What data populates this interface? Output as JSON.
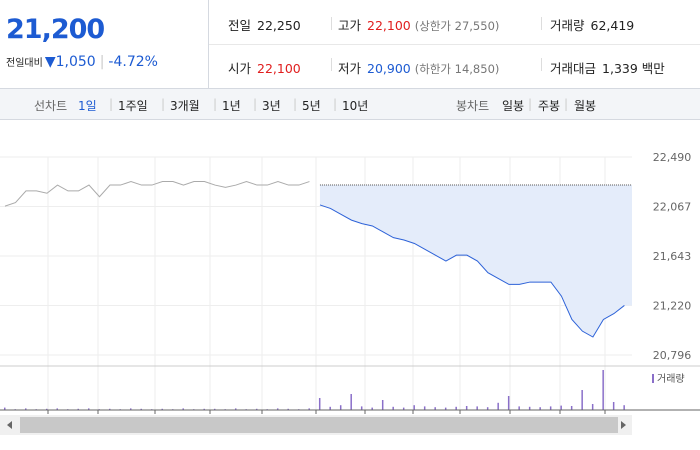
{
  "header": {
    "price": "21,200",
    "change_label": "전일대비",
    "change": "1,050",
    "change_pct": "-4.72%",
    "stats": [
      [
        {
          "label": "전일",
          "value": "22,250"
        },
        {
          "label": "고가",
          "value": "22,100",
          "note": "(상한가 27,550)"
        },
        {
          "label": "거래량",
          "value": "62,419"
        }
      ],
      [
        {
          "label": "시가",
          "value": "22,100"
        },
        {
          "label": "저가",
          "value": "20,900",
          "note": "(하한가 14,850)"
        },
        {
          "label": "거래대금",
          "value": "1,339 백만"
        }
      ]
    ]
  },
  "tabs": {
    "line_label": "선차트",
    "line_items": [
      "1일",
      "1주일",
      "3개월",
      "1년",
      "3년",
      "5년",
      "10년"
    ],
    "active": "1일",
    "candle_label": "봉차트",
    "candle_items": [
      "일봉",
      "주봉",
      "월봉"
    ]
  },
  "chart_data": {
    "type": "line",
    "categories": [
      null,
      null,
      null,
      null,
      null,
      null,
      null,
      null,
      null,
      null,
      null,
      null,
      null,
      null,
      null,
      null,
      null,
      null,
      null,
      null,
      null,
      null,
      null,
      null,
      null,
      null,
      null,
      null,
      null,
      null,
      null,
      null,
      null,
      null,
      null,
      null,
      null,
      null,
      null,
      null,
      null,
      null,
      null,
      null,
      null,
      null,
      null,
      null,
      null,
      null,
      null,
      null,
      null,
      null,
      null,
      null,
      null,
      null,
      null,
      null
    ],
    "ylim": [
      20796,
      22490
    ],
    "yticks": [
      {
        "value": 22490,
        "label": "22,490"
      },
      {
        "value": 22067,
        "label": "22,067"
      },
      {
        "value": 21643,
        "label": "21,643"
      },
      {
        "value": 21220,
        "label": "21,220"
      },
      {
        "value": 20796,
        "label": "20,796"
      }
    ],
    "reference": 22250,
    "series": [
      {
        "color": "#aaaaaa",
        "values": [
          22070,
          22100,
          22200,
          22200,
          22180,
          22250,
          22200,
          22200,
          22250,
          22150,
          22250,
          22250,
          22280,
          22250,
          22250,
          22280,
          22280,
          22250,
          22280,
          22280,
          22250,
          22230,
          22250,
          22280,
          22250,
          22250,
          22280,
          22250,
          22250,
          22280,
          null,
          null,
          null,
          null,
          null,
          null,
          null,
          null,
          null,
          null,
          null,
          null,
          null,
          null,
          null,
          null,
          null,
          null,
          null,
          null,
          null,
          null,
          null,
          null,
          null,
          null,
          null,
          null,
          null,
          null
        ]
      },
      {
        "color": "#2d62d8",
        "area_color": "#e4ecfa",
        "values": [
          null,
          null,
          null,
          null,
          null,
          null,
          null,
          null,
          null,
          null,
          null,
          null,
          null,
          null,
          null,
          null,
          null,
          null,
          null,
          null,
          null,
          null,
          null,
          null,
          null,
          null,
          null,
          null,
          null,
          null,
          22080,
          22050,
          22000,
          21950,
          21920,
          21900,
          21850,
          21800,
          21780,
          21750,
          21700,
          21650,
          21600,
          21650,
          21650,
          21600,
          21500,
          21450,
          21400,
          21400,
          21420,
          21420,
          21420,
          21300,
          21100,
          21000,
          20950,
          21100,
          21150,
          21220
        ]
      }
    ],
    "volume": {
      "name": "거래량",
      "color": "#8a6fc9",
      "vlim": [
        0,
        1000
      ],
      "values": [
        60,
        20,
        40,
        20,
        30,
        40,
        20,
        30,
        40,
        20,
        30,
        20,
        40,
        30,
        20,
        30,
        20,
        40,
        20,
        30,
        30,
        20,
        40,
        20,
        30,
        20,
        40,
        30,
        20,
        40,
        300,
        80,
        120,
        400,
        90,
        60,
        250,
        80,
        60,
        120,
        90,
        70,
        60,
        80,
        100,
        90,
        70,
        180,
        350,
        90,
        80,
        70,
        90,
        110,
        100,
        500,
        150,
        1000,
        200,
        120
      ]
    }
  }
}
